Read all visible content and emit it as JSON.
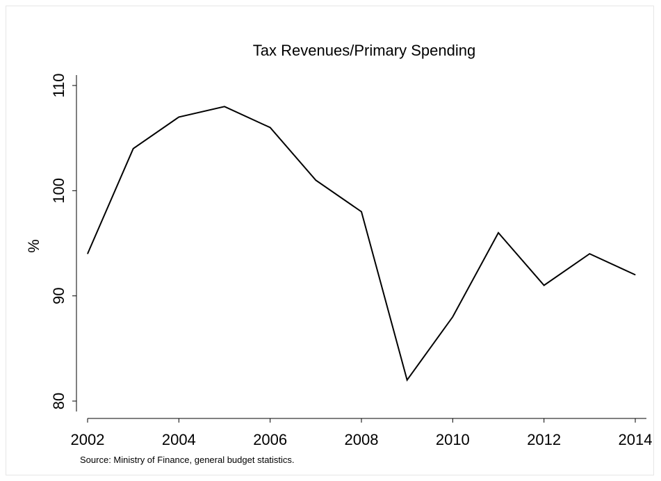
{
  "chart_data": {
    "type": "line",
    "title": "Tax Revenues/Primary Spending",
    "xlabel": "",
    "ylabel": "%",
    "x": [
      2002,
      2003,
      2004,
      2005,
      2006,
      2007,
      2008,
      2009,
      2010,
      2011,
      2012,
      2013,
      2014
    ],
    "series": [
      {
        "values": [
          94,
          104,
          107,
          108,
          106,
          101,
          98,
          82,
          88,
          96,
          91,
          94,
          92
        ]
      }
    ],
    "x_ticks": [
      "2002",
      "2004",
      "2006",
      "2008",
      "2010",
      "2012",
      "2014"
    ],
    "y_ticks": [
      "80",
      "90",
      "100",
      "110"
    ],
    "xlim": [
      2002,
      2014
    ],
    "ylim": [
      79,
      111
    ],
    "grid": false,
    "line_color": "#000000",
    "note": "Source: Ministry of Finance, general budget statistics."
  }
}
